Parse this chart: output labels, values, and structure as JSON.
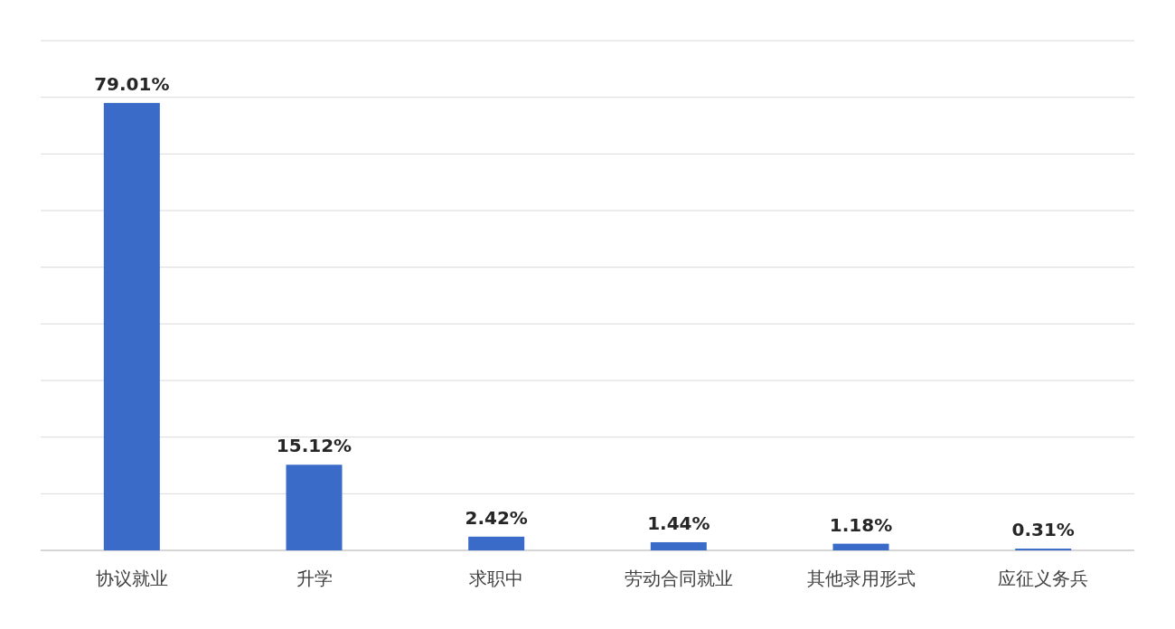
{
  "chart_data": {
    "type": "bar",
    "categories": [
      "协议就业",
      "升学",
      "求职中",
      "劳动合同就业",
      "其他录用形式",
      "应征义务兵"
    ],
    "values": [
      79.01,
      15.12,
      2.42,
      1.44,
      1.18,
      0.31
    ],
    "value_labels": [
      "79.01%",
      "15.12%",
      "2.42%",
      "1.44%",
      "1.18%",
      "0.31%"
    ],
    "color": "#3a6bc8",
    "ylim": [
      0,
      90
    ],
    "yticks": [
      {
        "value": 0,
        "label": null
      },
      {
        "value": 10,
        "label": null
      },
      {
        "value": 20,
        "label": null
      },
      {
        "value": 30,
        "label": null
      },
      {
        "value": 40,
        "label": null
      },
      {
        "value": 50,
        "label": null
      },
      {
        "value": 60,
        "label": null
      },
      {
        "value": 70,
        "label": null
      },
      {
        "value": 80,
        "label": null
      },
      {
        "value": 90,
        "label": null
      }
    ],
    "grid": "y",
    "tick_labels": "x"
  }
}
